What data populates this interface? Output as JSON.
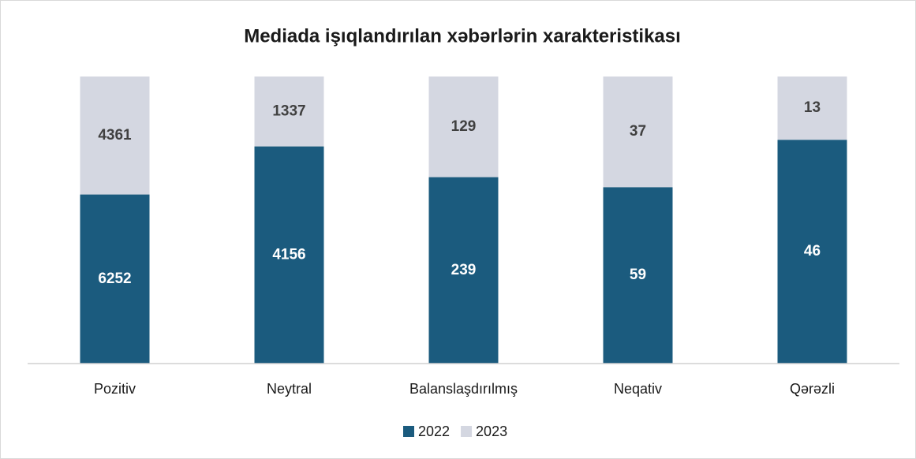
{
  "chart_data": {
    "type": "bar",
    "stacking": "percent",
    "title": "Mediada işıqlandırılan xəbərlərin xarakteristikası",
    "categories": [
      "Pozitiv",
      "Neytral",
      "Balanslaşdırılmış",
      "Neqativ",
      "Qərəzli"
    ],
    "series": [
      {
        "name": "2022",
        "color": "#1b5b7e",
        "label_color": "#ffffff",
        "values": [
          6252,
          4156,
          239,
          59,
          46
        ]
      },
      {
        "name": "2023",
        "color": "#d4d7e1",
        "label_color": "#404040",
        "values": [
          4361,
          1337,
          129,
          37,
          13
        ]
      }
    ],
    "legend": "bottom"
  }
}
